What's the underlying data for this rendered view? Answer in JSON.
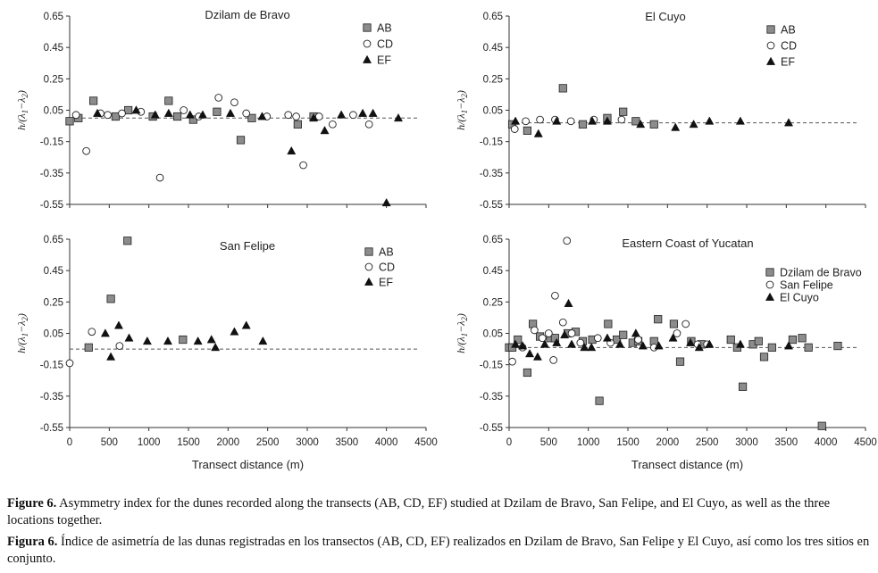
{
  "figure": {
    "caption_en_label": "Figure 6.",
    "caption_en_text": "Asymmetry index for the dunes recorded along the transects (AB, CD, EF) studied at Dzilam de Bravo, San Felipe, and El Cuyo, as well as the three locations together.",
    "caption_es_label": "Figura 6.",
    "caption_es_text": "Índice de asimetría de las dunas registradas en los transectos (AB, CD, EF) realizados en Dzilam de Bravo, San Felipe y El Cuyo, así como los tres sitios en conjunto."
  },
  "colors": {
    "square_fill": "#8c8c8c",
    "triangle_fill": "#111111",
    "circle_fill": "#ffffff",
    "stroke": "#222222",
    "reference_line": "#555555"
  },
  "chart_data": [
    {
      "id": "dzilam",
      "type": "scatter",
      "title": "Dzilam de Bravo",
      "ylabel": "h/(λ1−λ2)",
      "xlabel": "",
      "xlim": [
        0,
        4500
      ],
      "ylim": [
        -0.55,
        0.65
      ],
      "xticks": [],
      "yticks": [
        "0.65",
        "0.45",
        "0.25",
        "0.05",
        "-0.15",
        "-0.35",
        "-0.55"
      ],
      "reference_line": 0.0,
      "legend_position": "top-right",
      "series": [
        {
          "name": "AB",
          "marker": "square",
          "points": [
            [
              0,
              -0.02
            ],
            [
              110,
              0
            ],
            [
              300,
              0.11
            ],
            [
              580,
              0.01
            ],
            [
              740,
              0.05
            ],
            [
              1050,
              0.01
            ],
            [
              1250,
              0.11
            ],
            [
              1360,
              0.01
            ],
            [
              1560,
              -0.01
            ],
            [
              1860,
              0.04
            ],
            [
              2160,
              -0.14
            ],
            [
              2300,
              0
            ],
            [
              2880,
              -0.04
            ],
            [
              3080,
              0.01
            ]
          ]
        },
        {
          "name": "CD",
          "marker": "circle",
          "points": [
            [
              80,
              0.02
            ],
            [
              210,
              -0.21
            ],
            [
              390,
              0.03
            ],
            [
              480,
              0.02
            ],
            [
              660,
              0.03
            ],
            [
              900,
              0.04
            ],
            [
              1140,
              -0.38
            ],
            [
              1440,
              0.05
            ],
            [
              1630,
              0.01
            ],
            [
              1880,
              0.13
            ],
            [
              2080,
              0.1
            ],
            [
              2230,
              0.03
            ],
            [
              2490,
              0.01
            ],
            [
              2760,
              0.02
            ],
            [
              2860,
              0.01
            ],
            [
              2950,
              -0.3
            ],
            [
              3150,
              0.01
            ],
            [
              3320,
              -0.04
            ],
            [
              3580,
              0.02
            ],
            [
              3780,
              -0.04
            ]
          ]
        },
        {
          "name": "EF",
          "marker": "triangle",
          "points": [
            [
              350,
              0.03
            ],
            [
              840,
              0.05
            ],
            [
              1080,
              0.02
            ],
            [
              1250,
              0.03
            ],
            [
              1520,
              0.02
            ],
            [
              1680,
              0.02
            ],
            [
              2030,
              0.03
            ],
            [
              2430,
              0.01
            ],
            [
              2800,
              -0.21
            ],
            [
              3080,
              0
            ],
            [
              3220,
              -0.08
            ],
            [
              3430,
              0.02
            ],
            [
              3700,
              0.03
            ],
            [
              3830,
              0.03
            ],
            [
              4000,
              -0.54
            ],
            [
              4150,
              0
            ]
          ]
        }
      ]
    },
    {
      "id": "elcuyo",
      "type": "scatter",
      "title": "El Cuyo",
      "ylabel": "h/(λ1−λ2)",
      "xlabel": "",
      "xlim": [
        0,
        4500
      ],
      "ylim": [
        -0.55,
        0.65
      ],
      "xticks": [],
      "yticks": [
        "0.65",
        "0.45",
        "0.25",
        "0.05",
        "-0.15",
        "-0.35",
        "-0.55"
      ],
      "reference_line": -0.03,
      "legend_position": "top-right",
      "series": [
        {
          "name": "AB",
          "marker": "square",
          "points": [
            [
              40,
              -0.04
            ],
            [
              230,
              -0.08
            ],
            [
              680,
              0.19
            ],
            [
              930,
              -0.04
            ],
            [
              1240,
              0
            ],
            [
              1440,
              0.04
            ],
            [
              1600,
              -0.02
            ],
            [
              1830,
              -0.04
            ]
          ]
        },
        {
          "name": "CD",
          "marker": "circle",
          "points": [
            [
              70,
              -0.07
            ],
            [
              210,
              -0.02
            ],
            [
              390,
              -0.01
            ],
            [
              580,
              -0.01
            ],
            [
              780,
              -0.02
            ],
            [
              1070,
              -0.01
            ],
            [
              1420,
              -0.01
            ]
          ]
        },
        {
          "name": "EF",
          "marker": "triangle",
          "points": [
            [
              80,
              -0.02
            ],
            [
              370,
              -0.1
            ],
            [
              600,
              -0.02
            ],
            [
              1050,
              -0.02
            ],
            [
              1240,
              -0.02
            ],
            [
              1660,
              -0.04
            ],
            [
              2100,
              -0.06
            ],
            [
              2330,
              -0.04
            ],
            [
              2530,
              -0.02
            ],
            [
              2920,
              -0.02
            ],
            [
              3530,
              -0.03
            ]
          ]
        }
      ]
    },
    {
      "id": "sanfelipe",
      "type": "scatter",
      "title": "San Felipe",
      "ylabel": "h/(λ1−λ2)",
      "xlabel": "Transect distance (m)",
      "xlim": [
        0,
        4500
      ],
      "ylim": [
        -0.55,
        0.65
      ],
      "xticks": [
        "0",
        "500",
        "1000",
        "1500",
        "2000",
        "2500",
        "3000",
        "3500",
        "4000",
        "4500"
      ],
      "yticks": [
        "0.65",
        "0.45",
        "0.25",
        "0.05",
        "-0.15",
        "-0.35",
        "-0.55"
      ],
      "reference_line": -0.05,
      "legend_position": "top-right",
      "series": [
        {
          "name": "AB",
          "marker": "square",
          "points": [
            [
              240,
              -0.04
            ],
            [
              520,
              0.27
            ],
            [
              730,
              0.64
            ],
            [
              1430,
              0.01
            ]
          ]
        },
        {
          "name": "CD",
          "marker": "circle",
          "points": [
            [
              0,
              -0.14
            ],
            [
              280,
              0.06
            ],
            [
              630,
              -0.03
            ]
          ]
        },
        {
          "name": "EF",
          "marker": "triangle",
          "points": [
            [
              450,
              0.05
            ],
            [
              520,
              -0.1
            ],
            [
              620,
              0.1
            ],
            [
              750,
              0.02
            ],
            [
              980,
              0
            ],
            [
              1240,
              0
            ],
            [
              1620,
              0
            ],
            [
              1790,
              0.01
            ],
            [
              1840,
              -0.04
            ],
            [
              2080,
              0.06
            ],
            [
              2230,
              0.1
            ],
            [
              2440,
              0
            ]
          ]
        }
      ]
    },
    {
      "id": "eastern",
      "type": "scatter",
      "title": "Eastern Coast of Yucatan",
      "ylabel": "h/(λ1−λ2)",
      "xlabel": "Transect distance (m)",
      "xlim": [
        0,
        4500
      ],
      "ylim": [
        -0.55,
        0.65
      ],
      "xticks": [
        "0",
        "500",
        "1000",
        "1500",
        "2000",
        "2500",
        "3000",
        "3500",
        "4000",
        "4500"
      ],
      "yticks": [
        "0.65",
        "0.45",
        "0.25",
        "0.05",
        "-0.15",
        "-0.35",
        "-0.55"
      ],
      "reference_line": -0.04,
      "legend_position": "top-right",
      "series": [
        {
          "name": "Dzilam de Bravo",
          "marker": "square",
          "points": [
            [
              0,
              -0.04
            ],
            [
              40,
              -0.04
            ],
            [
              110,
              0.01
            ],
            [
              230,
              -0.2
            ],
            [
              300,
              0.11
            ],
            [
              390,
              0.03
            ],
            [
              520,
              0.02
            ],
            [
              580,
              0.02
            ],
            [
              740,
              0.05
            ],
            [
              840,
              0.06
            ],
            [
              930,
              0
            ],
            [
              1050,
              0.01
            ],
            [
              1140,
              -0.38
            ],
            [
              1250,
              0.11
            ],
            [
              1360,
              0.01
            ],
            [
              1440,
              0.04
            ],
            [
              1560,
              -0.01
            ],
            [
              1630,
              0
            ],
            [
              1830,
              0
            ],
            [
              1880,
              0.14
            ],
            [
              2080,
              0.11
            ],
            [
              2160,
              -0.13
            ],
            [
              2300,
              0
            ],
            [
              2430,
              -0.02
            ],
            [
              2800,
              0.01
            ],
            [
              2880,
              -0.04
            ],
            [
              2950,
              -0.29
            ],
            [
              3080,
              -0.02
            ],
            [
              3150,
              0
            ],
            [
              3220,
              -0.1
            ],
            [
              3320,
              -0.04
            ],
            [
              3580,
              0.01
            ],
            [
              3700,
              0.02
            ],
            [
              3780,
              -0.04
            ],
            [
              3950,
              -0.54
            ],
            [
              4150,
              -0.03
            ]
          ]
        },
        {
          "name": "San Felipe",
          "marker": "circle",
          "points": [
            [
              40,
              -0.13
            ],
            [
              170,
              -0.04
            ],
            [
              320,
              0.07
            ],
            [
              420,
              0.02
            ],
            [
              500,
              0.05
            ],
            [
              560,
              -0.12
            ],
            [
              580,
              0.29
            ],
            [
              680,
              0.12
            ],
            [
              730,
              0.64
            ],
            [
              790,
              0.05
            ],
            [
              900,
              -0.01
            ],
            [
              1120,
              0.02
            ],
            [
              1280,
              -0.01
            ],
            [
              1630,
              0.01
            ],
            [
              1830,
              -0.04
            ],
            [
              2120,
              0.05
            ],
            [
              2230,
              0.11
            ],
            [
              2380,
              -0.02
            ],
            [
              2500,
              -0.02
            ]
          ]
        },
        {
          "name": "El Cuyo",
          "marker": "triangle",
          "points": [
            [
              80,
              -0.02
            ],
            [
              170,
              -0.03
            ],
            [
              260,
              -0.08
            ],
            [
              360,
              -0.1
            ],
            [
              450,
              -0.02
            ],
            [
              600,
              -0.01
            ],
            [
              700,
              0.04
            ],
            [
              750,
              0.24
            ],
            [
              790,
              -0.02
            ],
            [
              950,
              -0.04
            ],
            [
              1040,
              -0.04
            ],
            [
              1240,
              0.02
            ],
            [
              1400,
              -0.02
            ],
            [
              1600,
              0.05
            ],
            [
              1690,
              -0.03
            ],
            [
              1890,
              -0.03
            ],
            [
              2070,
              0.02
            ],
            [
              2290,
              -0.01
            ],
            [
              2400,
              -0.04
            ],
            [
              2530,
              -0.02
            ],
            [
              2920,
              -0.02
            ],
            [
              3530,
              -0.03
            ]
          ]
        }
      ]
    }
  ]
}
